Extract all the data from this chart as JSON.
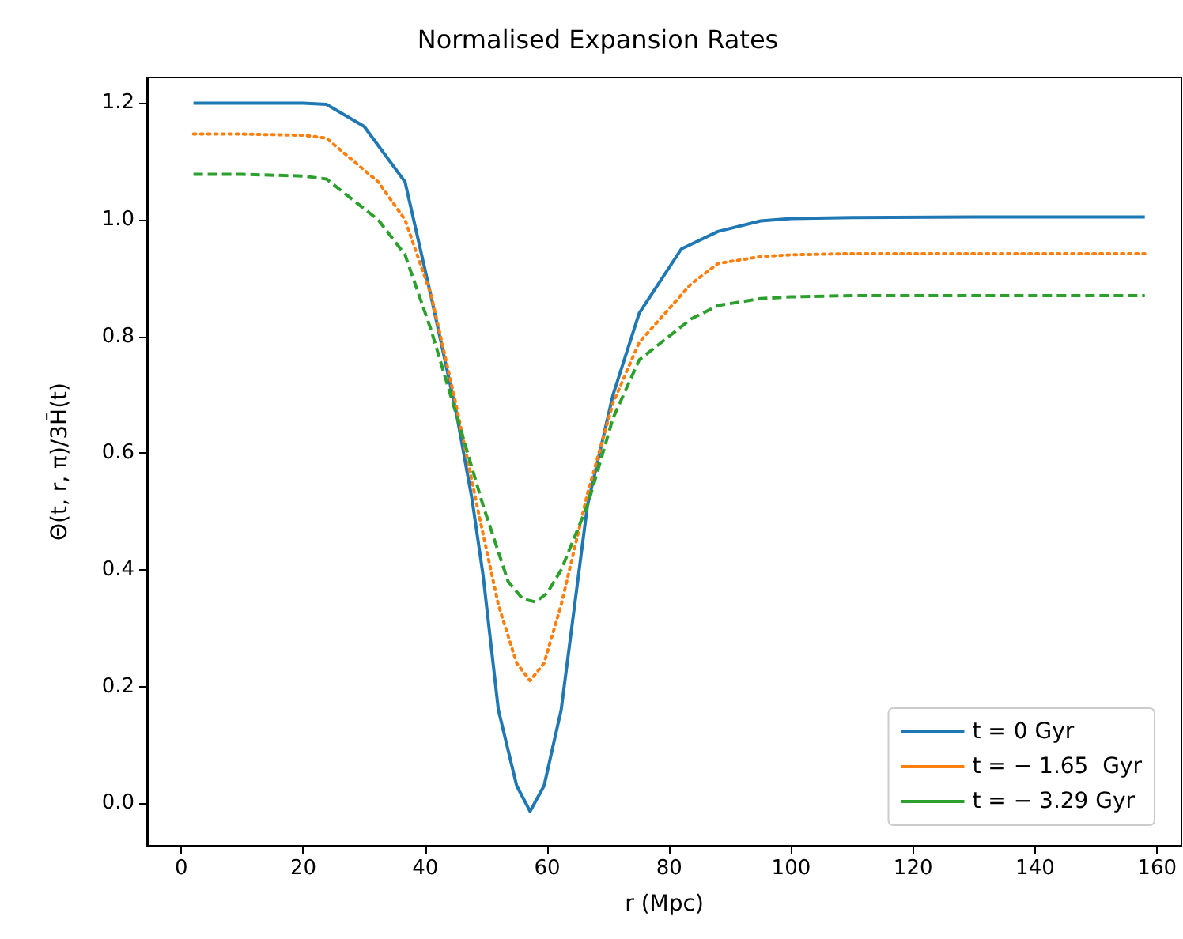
{
  "chart_data": {
    "type": "line",
    "title": "Normalised Expansion Rates",
    "xlabel": "r (Mpc)",
    "ylabel": "Θ(t, r, π)/3H̄(t)",
    "xlim": [
      -5.6,
      164
    ],
    "ylim": [
      -0.073,
      1.244
    ],
    "xticks": [
      0,
      20,
      40,
      60,
      80,
      100,
      120,
      140,
      160
    ],
    "yticks": [
      {
        "value": 0,
        "label": "0.0"
      },
      {
        "value": 0.2,
        "label": "0.2"
      },
      {
        "value": 0.4,
        "label": "0.4"
      },
      {
        "value": 0.6,
        "label": "0.6"
      },
      {
        "value": 0.8,
        "label": "0.8"
      },
      {
        "value": 1.0,
        "label": "1.0"
      },
      {
        "value": 1.2,
        "label": "1.2"
      }
    ],
    "grid": false,
    "legend": "bottom right",
    "marker": "none",
    "series": [
      {
        "name": "t = 0 Gyr",
        "color": "#1f77b4",
        "line_style": "solid",
        "x": [
          2,
          10,
          20,
          23.8,
          30,
          36.7,
          41,
          45.1,
          47.7,
          49.5,
          52,
          55,
          57.2,
          59.5,
          62.3,
          66.6,
          70.8,
          75.1,
          82,
          88,
          95,
          100,
          110,
          130,
          158
        ],
        "values": [
          1.2,
          1.2,
          1.2,
          1.198,
          1.16,
          1.065,
          0.867,
          0.67,
          0.52,
          0.39,
          0.16,
          0.03,
          -0.014,
          0.03,
          0.16,
          0.51,
          0.7,
          0.84,
          0.95,
          0.98,
          0.998,
          1.002,
          1.004,
          1.005,
          1.005
        ]
      },
      {
        "name": "t = − 1.65  Gyr",
        "color": "#ff7f0e",
        "line_style": "dotted",
        "x": [
          2,
          10,
          20,
          23.8,
          32.3,
          36.7,
          41,
          45,
          48.7,
          52,
          55,
          57.2,
          59.5,
          62.3,
          66.6,
          70.8,
          75.1,
          83.6,
          88,
          95,
          100,
          110,
          130,
          158
        ],
        "values": [
          1.147,
          1.147,
          1.145,
          1.14,
          1.065,
          1.0,
          0.87,
          0.686,
          0.5,
          0.34,
          0.24,
          0.21,
          0.24,
          0.34,
          0.53,
          0.686,
          0.79,
          0.89,
          0.925,
          0.937,
          0.94,
          0.942,
          0.942,
          0.942
        ]
      },
      {
        "name": "t = − 3.29 Gyr",
        "color": "#2ca02c",
        "line_style": "dashed",
        "x": [
          2,
          10,
          20,
          23.8,
          32.3,
          36.7,
          41,
          45,
          49.5,
          53.6,
          56,
          58.1,
          60,
          62.3,
          66.6,
          70.8,
          75.1,
          83.6,
          88,
          95,
          100,
          110,
          130,
          158
        ],
        "values": [
          1.078,
          1.078,
          1.075,
          1.07,
          1.0,
          0.94,
          0.81,
          0.67,
          0.51,
          0.38,
          0.35,
          0.345,
          0.36,
          0.4,
          0.51,
          0.66,
          0.76,
          0.83,
          0.853,
          0.865,
          0.868,
          0.87,
          0.87,
          0.87
        ]
      }
    ]
  }
}
